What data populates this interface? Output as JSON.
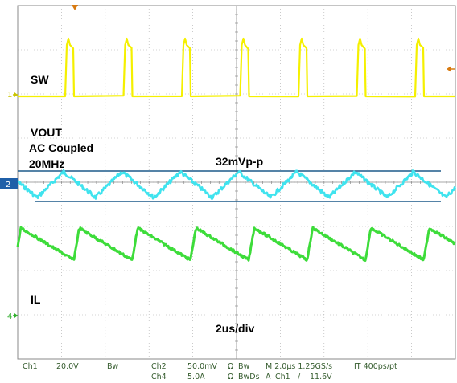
{
  "labels": {
    "ch1": "SW",
    "ch2_name": "VOUT",
    "ch2_coupling": "AC Coupled",
    "ch2_bw": "20MHz",
    "ripple": "32mVp-p",
    "ch4": "IL",
    "timebase": "2us/div"
  },
  "markers": {
    "ch1": "1",
    "ch2": "2",
    "ch4": "4"
  },
  "status": {
    "ch1_label": "Ch1",
    "ch1_scale": "20.0V",
    "ch1_bw": "Bw",
    "ch2_label": "Ch2",
    "ch2_scale": "50.0mV",
    "ch2_imp": "Ω",
    "ch2_bw": "Bw",
    "ch4_label": "Ch4",
    "ch4_scale": "5.0A",
    "ch4_imp": "Ω",
    "ch4_bw": "BwDs",
    "horizontal": "M 2.0µs 1.25GS/s",
    "interp": "IT 400ps/pt",
    "trigger_prefix": "A",
    "trigger_source": "Ch1",
    "trigger_slope": "/",
    "trigger_level": "11.6V"
  },
  "colors": {
    "ch1": "#f5f000",
    "ch2": "#3fe3ee",
    "ch4": "#3ddc3a",
    "cursor": "#1d5a8a",
    "graticule": "#8a8a8a",
    "status_text": "#355c2e",
    "marker_orange": "#d87a10"
  }
}
